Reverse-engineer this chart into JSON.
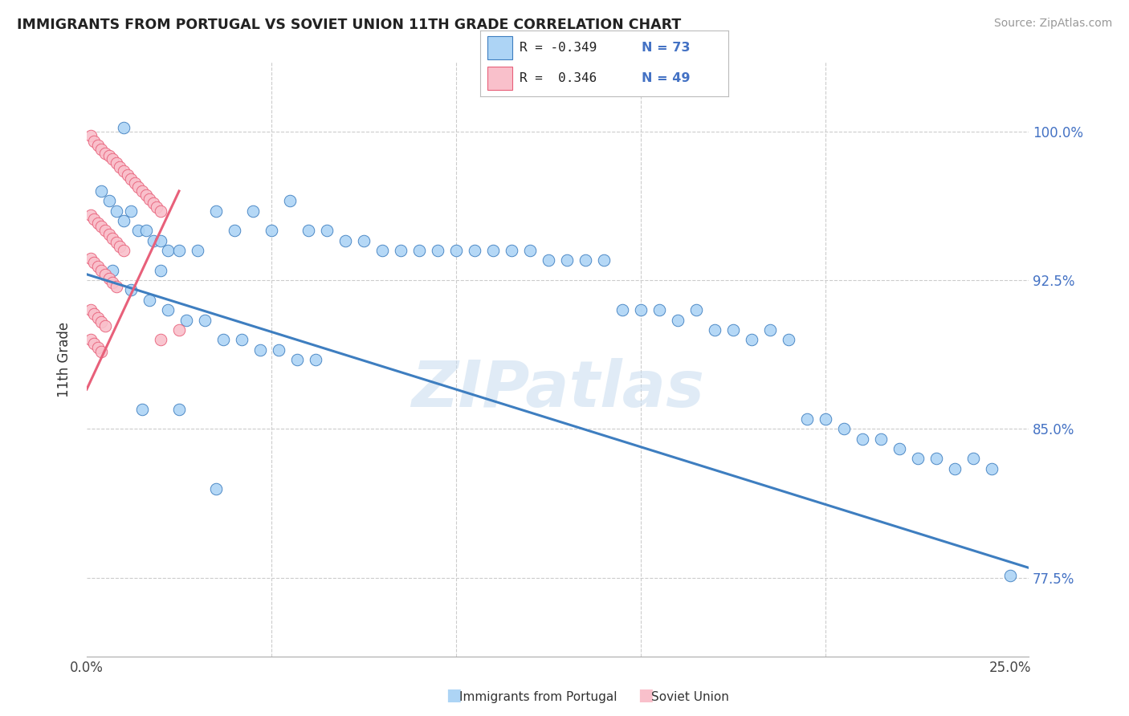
{
  "title": "IMMIGRANTS FROM PORTUGAL VS SOVIET UNION 11TH GRADE CORRELATION CHART",
  "source": "Source: ZipAtlas.com",
  "ylabel": "11th Grade",
  "x_ticks": [
    0.0,
    0.05,
    0.1,
    0.15,
    0.2,
    0.25
  ],
  "x_tick_labels": [
    "0.0%",
    "",
    "",
    "",
    "",
    "25.0%"
  ],
  "y_ticks": [
    0.775,
    0.85,
    0.925,
    1.0
  ],
  "y_tick_labels": [
    "77.5%",
    "85.0%",
    "92.5%",
    "100.0%"
  ],
  "xlim": [
    0.0,
    0.255
  ],
  "ylim": [
    0.735,
    1.035
  ],
  "blue_color": "#ADD4F5",
  "pink_color": "#F9C0CB",
  "line_blue_color": "#3E7EC0",
  "line_pink_color": "#E8607A",
  "watermark": "ZIPatlas",
  "blue_x": [
    0.004,
    0.006,
    0.008,
    0.01,
    0.012,
    0.014,
    0.016,
    0.018,
    0.02,
    0.022,
    0.025,
    0.03,
    0.035,
    0.04,
    0.045,
    0.05,
    0.055,
    0.06,
    0.065,
    0.07,
    0.075,
    0.08,
    0.085,
    0.09,
    0.095,
    0.1,
    0.105,
    0.11,
    0.115,
    0.12,
    0.125,
    0.13,
    0.135,
    0.14,
    0.145,
    0.15,
    0.155,
    0.16,
    0.165,
    0.17,
    0.175,
    0.18,
    0.185,
    0.19,
    0.195,
    0.2,
    0.205,
    0.21,
    0.215,
    0.22,
    0.225,
    0.23,
    0.235,
    0.24,
    0.245,
    0.25,
    0.007,
    0.012,
    0.017,
    0.022,
    0.027,
    0.032,
    0.037,
    0.042,
    0.047,
    0.052,
    0.057,
    0.062,
    0.015,
    0.025,
    0.035,
    0.01,
    0.02
  ],
  "blue_y": [
    0.97,
    0.965,
    0.96,
    0.955,
    0.96,
    0.95,
    0.95,
    0.945,
    0.945,
    0.94,
    0.94,
    0.94,
    0.96,
    0.95,
    0.96,
    0.95,
    0.965,
    0.95,
    0.95,
    0.945,
    0.945,
    0.94,
    0.94,
    0.94,
    0.94,
    0.94,
    0.94,
    0.94,
    0.94,
    0.94,
    0.935,
    0.935,
    0.935,
    0.935,
    0.91,
    0.91,
    0.91,
    0.905,
    0.91,
    0.9,
    0.9,
    0.895,
    0.9,
    0.895,
    0.855,
    0.855,
    0.85,
    0.845,
    0.845,
    0.84,
    0.835,
    0.835,
    0.83,
    0.835,
    0.83,
    0.776,
    0.93,
    0.92,
    0.915,
    0.91,
    0.905,
    0.905,
    0.895,
    0.895,
    0.89,
    0.89,
    0.885,
    0.885,
    0.86,
    0.86,
    0.82,
    1.002,
    0.93
  ],
  "pink_x": [
    0.001,
    0.002,
    0.003,
    0.004,
    0.005,
    0.006,
    0.007,
    0.008,
    0.009,
    0.01,
    0.011,
    0.012,
    0.013,
    0.014,
    0.015,
    0.016,
    0.017,
    0.018,
    0.019,
    0.02,
    0.001,
    0.002,
    0.003,
    0.004,
    0.005,
    0.006,
    0.007,
    0.008,
    0.009,
    0.01,
    0.001,
    0.002,
    0.003,
    0.004,
    0.005,
    0.006,
    0.007,
    0.008,
    0.001,
    0.002,
    0.003,
    0.004,
    0.005,
    0.001,
    0.002,
    0.003,
    0.004,
    0.02,
    0.025
  ],
  "pink_y": [
    0.998,
    0.995,
    0.993,
    0.991,
    0.989,
    0.988,
    0.986,
    0.984,
    0.982,
    0.98,
    0.978,
    0.976,
    0.974,
    0.972,
    0.97,
    0.968,
    0.966,
    0.964,
    0.962,
    0.96,
    0.958,
    0.956,
    0.954,
    0.952,
    0.95,
    0.948,
    0.946,
    0.944,
    0.942,
    0.94,
    0.936,
    0.934,
    0.932,
    0.93,
    0.928,
    0.926,
    0.924,
    0.922,
    0.91,
    0.908,
    0.906,
    0.904,
    0.902,
    0.895,
    0.893,
    0.891,
    0.889,
    0.895,
    0.9
  ],
  "blue_line_x": [
    0.0,
    0.255
  ],
  "blue_line_y": [
    0.928,
    0.78
  ],
  "pink_line_x": [
    0.0,
    0.025
  ],
  "pink_line_y": [
    0.87,
    0.97
  ]
}
